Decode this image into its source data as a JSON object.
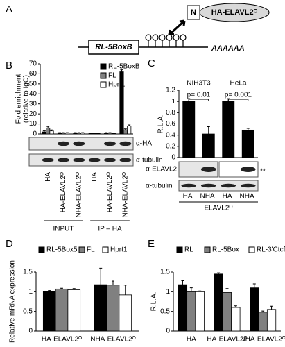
{
  "diagram": {
    "label": "A",
    "domain": "N",
    "protein": "HA-ELAVL2ᴼ",
    "reporter": "RL-5BoxB",
    "poly_a": "AAAAAA"
  },
  "chart_data": [
    {
      "type": "bar",
      "label": "B",
      "ylabel": [
        "Fold enrichment",
        "(relative to IgG)"
      ],
      "categories": [
        "HA",
        "HA-ELAVL2ᴼ",
        "NHA-ELAVL2ᴼ",
        "HA",
        "HA-ELAVL2ᴼ",
        "NHA-ELAVL2ᴼ"
      ],
      "series": [
        {
          "name": "RL-5BoxB",
          "color": "#000000",
          "values": [
            2,
            1,
            1,
            0.5,
            1,
            62
          ],
          "errors": [
            1,
            0.3,
            0.3,
            0.2,
            0.3,
            2
          ]
        },
        {
          "name": "FL",
          "color": "#808080",
          "values": [
            6,
            1,
            1,
            0.5,
            1,
            4
          ],
          "errors": [
            1.5,
            0.3,
            0.3,
            0.2,
            0.3,
            1
          ]
        },
        {
          "name": "Hprt1",
          "color": "#ffffff",
          "values": [
            3,
            1,
            1,
            0.5,
            0.5,
            8
          ],
          "errors": [
            1,
            0.3,
            0.3,
            0.2,
            0.2,
            1
          ]
        }
      ],
      "ylim": [
        0,
        70
      ],
      "yticks": [
        0,
        10,
        20,
        30,
        40,
        50,
        60,
        70
      ],
      "blot_labels": [
        "α-HA",
        "α-tubulin"
      ],
      "groups": [
        "INPUT",
        "IP – HA"
      ]
    },
    {
      "type": "bar",
      "label": "C",
      "ylabel": "R.L.A.",
      "categories": [
        "HA-",
        "NHA-",
        "HA-",
        "NHA-"
      ],
      "cell_lines": [
        "NIH3T3",
        "HeLa"
      ],
      "series": [
        {
          "color": "#000000",
          "values": [
            1,
            0.42,
            1,
            0.49
          ],
          "errors": [
            0.05,
            0.13,
            0.05,
            0.03
          ]
        }
      ],
      "ylim": [
        0,
        1.2
      ],
      "yticks": [
        0,
        0.2,
        0.4,
        0.6,
        0.8,
        1,
        1.2
      ],
      "annotations": [
        "p= 0.01",
        "p= 0.001"
      ],
      "blot_labels": [
        "α-ELAVL2",
        "α-tubulin"
      ],
      "blot_note": "**",
      "xlabel": "ELAVL2ᴼ"
    },
    {
      "type": "bar",
      "label": "D",
      "ylabel": "Relative mRNA expression",
      "categories": [
        "HA-ELAVL2ᴼ",
        "NHA-ELAVL2ᴼ"
      ],
      "series": [
        {
          "name": "RL-5Box5",
          "color": "#000000",
          "values": [
            1.01,
            1.18
          ],
          "errors": [
            0.02,
            0.42
          ]
        },
        {
          "name": "FL",
          "color": "#808080",
          "values": [
            1.07,
            1.17
          ],
          "errors": [
            0.02,
            0.1
          ]
        },
        {
          "name": "Hprt1",
          "color": "#ffffff",
          "values": [
            1.05,
            0.92
          ],
          "errors": [
            0.03,
            0.25
          ]
        }
      ],
      "ylim": [
        0,
        1.5
      ],
      "yticks": [
        0,
        0.5,
        1,
        1.5
      ]
    },
    {
      "type": "bar",
      "label": "E",
      "ylabel": "R.L.A.",
      "categories": [
        "HA",
        "HA-ELAVL2ᴼ",
        "NHA-ELAVL2ᴼ"
      ],
      "series": [
        {
          "name": "RL",
          "color": "#000000",
          "values": [
            1.18,
            1.45,
            1.1
          ],
          "errors": [
            0.1,
            0.03,
            0.1
          ]
        },
        {
          "name": "RL-5Box",
          "color": "#808080",
          "values": [
            1,
            0.98,
            0.48
          ],
          "errors": [
            0.1,
            0.1,
            0.03
          ]
        },
        {
          "name": "RL-3'Ctcf",
          "color": "#ffffff",
          "values": [
            1,
            0.6,
            0.55
          ],
          "errors": [
            0.02,
            0.04,
            0.08
          ]
        }
      ],
      "ylim": [
        0,
        1.5
      ],
      "yticks": [
        0,
        0.5,
        1,
        1.5
      ]
    }
  ]
}
